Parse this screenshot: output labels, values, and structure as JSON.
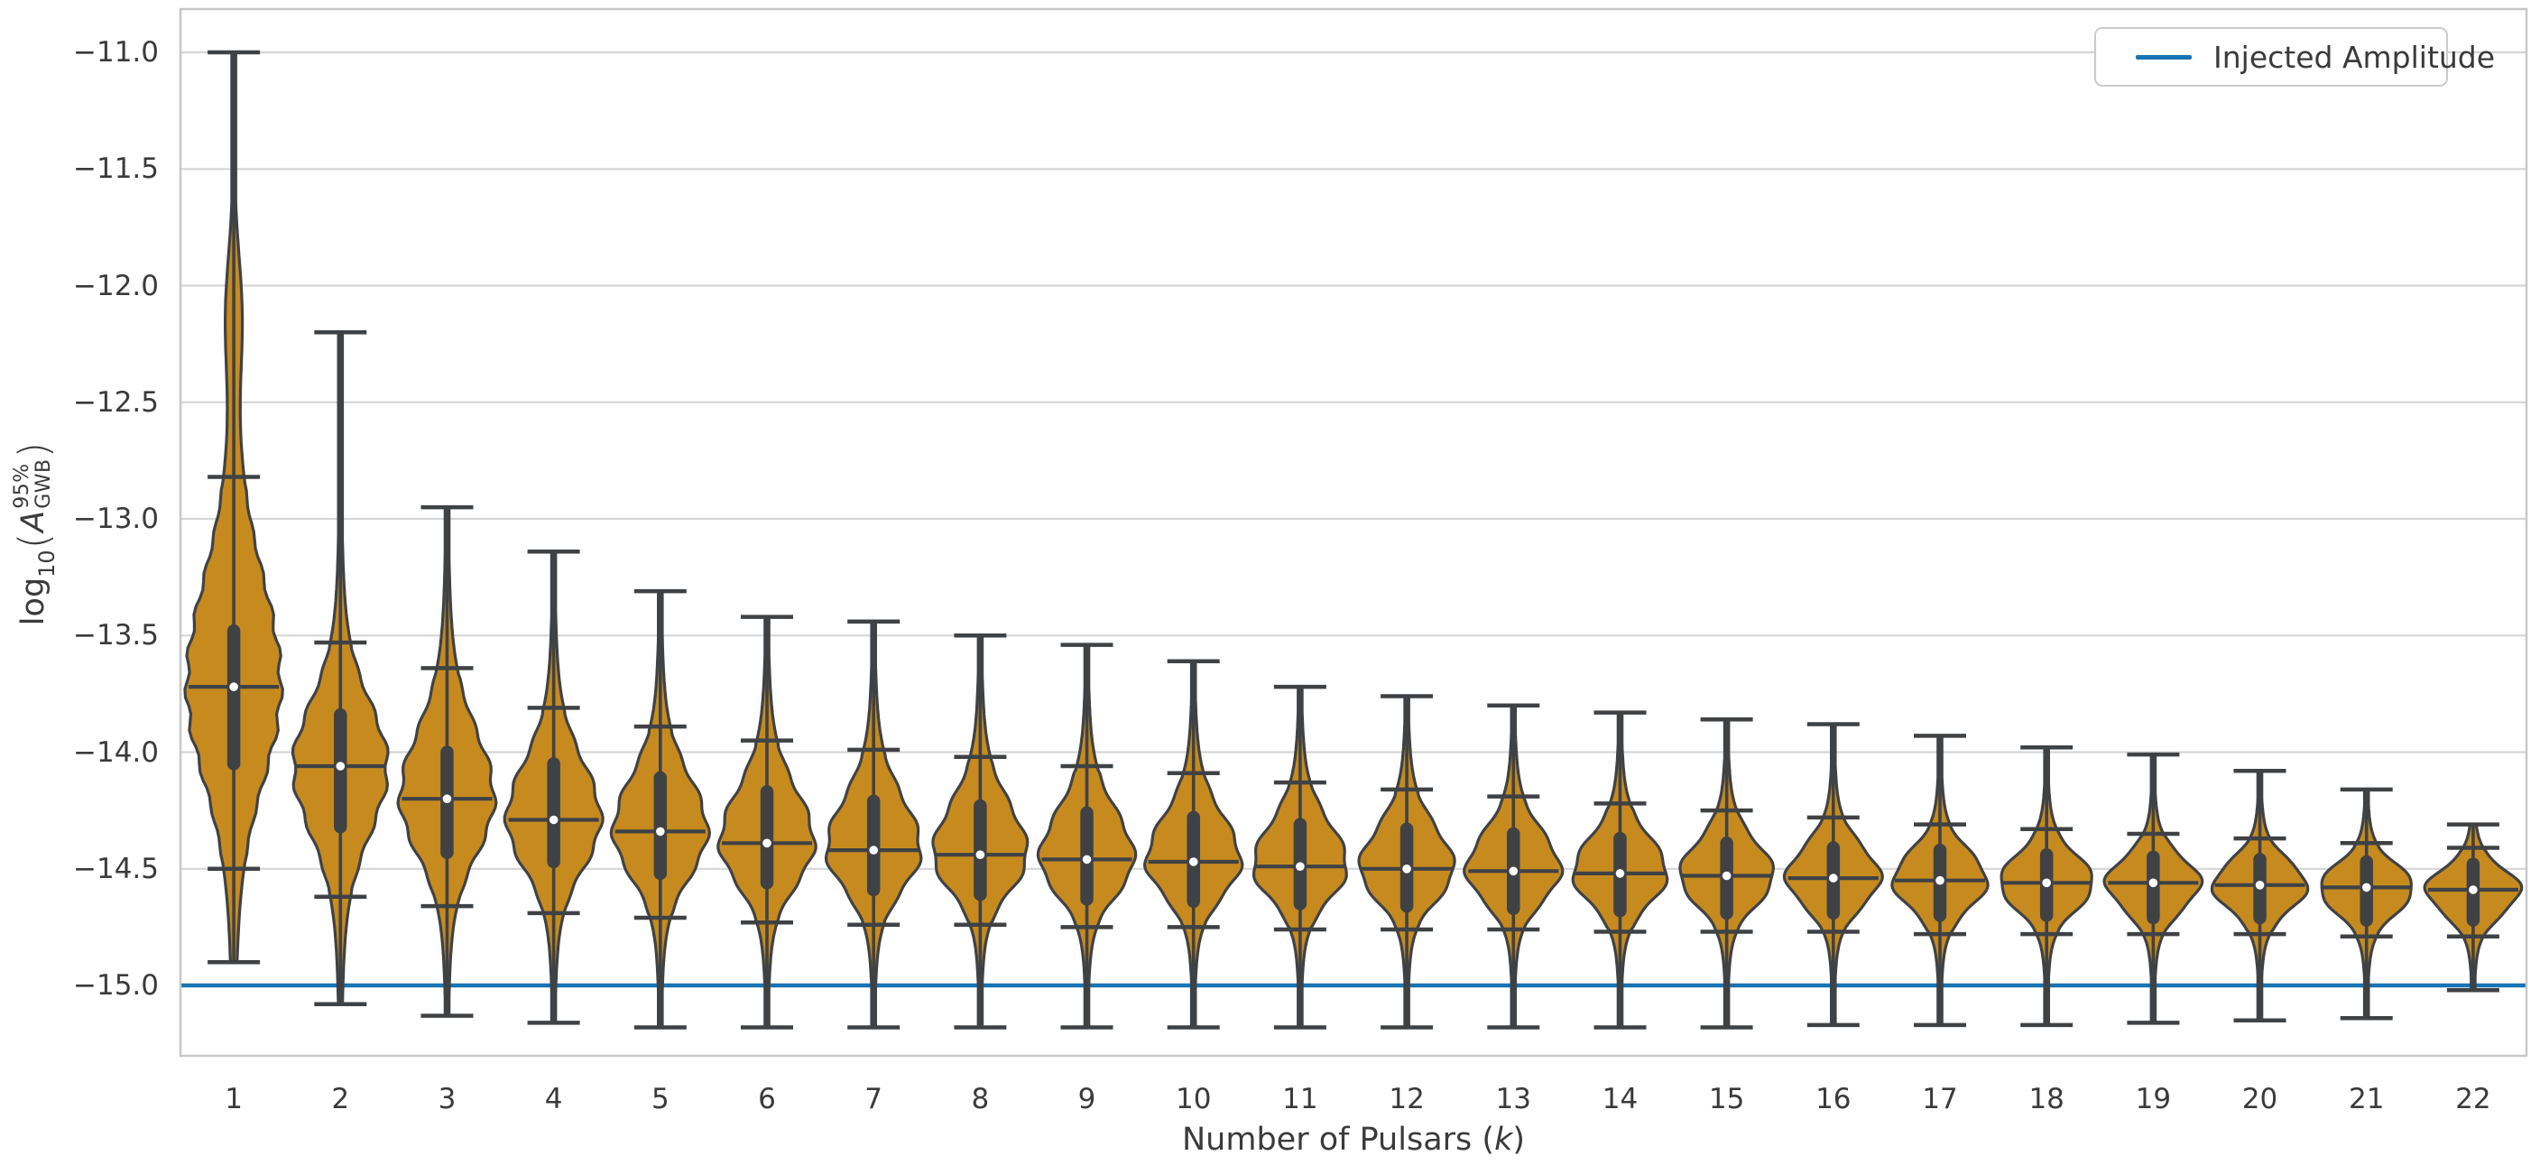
{
  "chart_data": {
    "type": "violin",
    "title": "",
    "xlabel": "Number of Pulsars (k)",
    "ylabel": "log10(A_GWB^95%)",
    "grid": true,
    "legend": {
      "label": "Injected Amplitude",
      "position": "upper right"
    },
    "injected_amplitude": -15.0,
    "ylim": [
      -15.3,
      -10.8
    ],
    "x_axis": {
      "title_prefix": "Number of Pulsars (",
      "title_var": "k",
      "title_suffix": ")",
      "tick_labels": [
        "1",
        "2",
        "3",
        "4",
        "5",
        "6",
        "7",
        "8",
        "9",
        "10",
        "11",
        "12",
        "13",
        "14",
        "15",
        "16",
        "17",
        "18",
        "19",
        "20",
        "21",
        "22"
      ]
    },
    "y_axis": {
      "title_func": "log",
      "title_base": "10",
      "title_open": "(",
      "title_var": "A",
      "title_sup": "95%",
      "title_sub": "GWB",
      "title_close": ")",
      "ticks": [
        {
          "value": -11.0,
          "label": "−11.0"
        },
        {
          "value": -11.5,
          "label": "−11.5"
        },
        {
          "value": -12.0,
          "label": "−12.0"
        },
        {
          "value": -12.5,
          "label": "−12.5"
        },
        {
          "value": -13.0,
          "label": "−13.0"
        },
        {
          "value": -13.5,
          "label": "−13.5"
        },
        {
          "value": -14.0,
          "label": "−14.0"
        },
        {
          "value": -14.5,
          "label": "−14.5"
        },
        {
          "value": -15.0,
          "label": "−15.0"
        }
      ]
    },
    "categories": [
      "1",
      "2",
      "3",
      "4",
      "5",
      "6",
      "7",
      "8",
      "9",
      "10",
      "11",
      "12",
      "13",
      "14",
      "15",
      "16",
      "17",
      "18",
      "19",
      "20",
      "21",
      "22"
    ],
    "violins": [
      {
        "k": "1",
        "max": -11.0,
        "p84": -12.82,
        "q3": -13.48,
        "median": -13.72,
        "q1": -14.05,
        "p16": -14.5,
        "min": -14.9,
        "bump": {
          "at": -12.12,
          "s": 0.25,
          "w": 7
        }
      },
      {
        "k": "2",
        "max": -12.2,
        "p84": -13.53,
        "q3": -13.84,
        "median": -14.06,
        "q1": -14.32,
        "p16": -14.62,
        "min": -15.08
      },
      {
        "k": "3",
        "max": -12.95,
        "p84": -13.64,
        "q3": -14.0,
        "median": -14.2,
        "q1": -14.43,
        "p16": -14.66,
        "min": -15.13
      },
      {
        "k": "4",
        "max": -13.14,
        "p84": -13.81,
        "q3": -14.05,
        "median": -14.29,
        "q1": -14.47,
        "p16": -14.69,
        "min": -15.16
      },
      {
        "k": "5",
        "max": -13.31,
        "p84": -13.89,
        "q3": -14.11,
        "median": -14.34,
        "q1": -14.52,
        "p16": -14.71,
        "min": -15.18
      },
      {
        "k": "6",
        "max": -13.42,
        "p84": -13.95,
        "q3": -14.17,
        "median": -14.39,
        "q1": -14.56,
        "p16": -14.73,
        "min": -15.18
      },
      {
        "k": "7",
        "max": -13.44,
        "p84": -13.99,
        "q3": -14.21,
        "median": -14.42,
        "q1": -14.59,
        "p16": -14.74,
        "min": -15.18
      },
      {
        "k": "8",
        "max": -13.5,
        "p84": -14.02,
        "q3": -14.23,
        "median": -14.44,
        "q1": -14.61,
        "p16": -14.74,
        "min": -15.18
      },
      {
        "k": "9",
        "max": -13.54,
        "p84": -14.06,
        "q3": -14.26,
        "median": -14.46,
        "q1": -14.63,
        "p16": -14.75,
        "min": -15.18
      },
      {
        "k": "10",
        "max": -13.61,
        "p84": -14.09,
        "q3": -14.28,
        "median": -14.47,
        "q1": -14.64,
        "p16": -14.75,
        "min": -15.18
      },
      {
        "k": "11",
        "max": -13.72,
        "p84": -14.13,
        "q3": -14.31,
        "median": -14.49,
        "q1": -14.65,
        "p16": -14.76,
        "min": -15.18
      },
      {
        "k": "12",
        "max": -13.76,
        "p84": -14.16,
        "q3": -14.33,
        "median": -14.5,
        "q1": -14.66,
        "p16": -14.76,
        "min": -15.18
      },
      {
        "k": "13",
        "max": -13.8,
        "p84": -14.19,
        "q3": -14.35,
        "median": -14.51,
        "q1": -14.67,
        "p16": -14.76,
        "min": -15.18
      },
      {
        "k": "14",
        "max": -13.83,
        "p84": -14.22,
        "q3": -14.37,
        "median": -14.52,
        "q1": -14.68,
        "p16": -14.77,
        "min": -15.18
      },
      {
        "k": "15",
        "max": -13.86,
        "p84": -14.25,
        "q3": -14.39,
        "median": -14.53,
        "q1": -14.69,
        "p16": -14.77,
        "min": -15.18
      },
      {
        "k": "16",
        "max": -13.88,
        "p84": -14.28,
        "q3": -14.41,
        "median": -14.54,
        "q1": -14.69,
        "p16": -14.77,
        "min": -15.17
      },
      {
        "k": "17",
        "max": -13.93,
        "p84": -14.31,
        "q3": -14.42,
        "median": -14.55,
        "q1": -14.7,
        "p16": -14.78,
        "min": -15.17
      },
      {
        "k": "18",
        "max": -13.98,
        "p84": -14.33,
        "q3": -14.44,
        "median": -14.56,
        "q1": -14.7,
        "p16": -14.78,
        "min": -15.17
      },
      {
        "k": "19",
        "max": -14.01,
        "p84": -14.35,
        "q3": -14.45,
        "median": -14.56,
        "q1": -14.71,
        "p16": -14.78,
        "min": -15.16
      },
      {
        "k": "20",
        "max": -14.08,
        "p84": -14.37,
        "q3": -14.46,
        "median": -14.57,
        "q1": -14.71,
        "p16": -14.78,
        "min": -15.15
      },
      {
        "k": "21",
        "max": -14.16,
        "p84": -14.39,
        "q3": -14.47,
        "median": -14.58,
        "q1": -14.72,
        "p16": -14.79,
        "min": -15.14
      },
      {
        "k": "22",
        "max": -14.31,
        "p84": -14.41,
        "q3": -14.48,
        "median": -14.59,
        "q1": -14.72,
        "p16": -14.79,
        "min": -15.02
      }
    ],
    "colors": {
      "violin_fill": "#c68a1e",
      "violin_edge": "#3f4245",
      "inner_line": "#3f4245",
      "median_dot": "#ffffff",
      "grid": "#d6d6d6",
      "spine": "#c8c8c8",
      "injected_line": "#1874b4",
      "text": "#3a3a3a"
    }
  }
}
